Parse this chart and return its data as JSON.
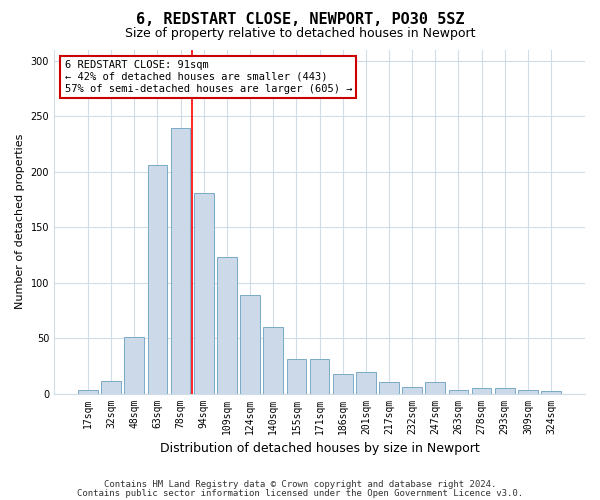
{
  "title1": "6, REDSTART CLOSE, NEWPORT, PO30 5SZ",
  "title2": "Size of property relative to detached houses in Newport",
  "xlabel": "Distribution of detached houses by size in Newport",
  "ylabel": "Number of detached properties",
  "bar_labels": [
    "17sqm",
    "32sqm",
    "48sqm",
    "63sqm",
    "78sqm",
    "94sqm",
    "109sqm",
    "124sqm",
    "140sqm",
    "155sqm",
    "171sqm",
    "186sqm",
    "201sqm",
    "217sqm",
    "232sqm",
    "247sqm",
    "263sqm",
    "278sqm",
    "293sqm",
    "309sqm",
    "324sqm"
  ],
  "bar_values": [
    3,
    11,
    51,
    206,
    240,
    181,
    123,
    89,
    60,
    31,
    31,
    18,
    19,
    10,
    6,
    10,
    3,
    5,
    5,
    3,
    2
  ],
  "bar_color": "#ccd9e8",
  "bar_edge_color": "#7aaac8",
  "red_line_index": 4.5,
  "annotation_text": "6 REDSTART CLOSE: 91sqm\n← 42% of detached houses are smaller (443)\n57% of semi-detached houses are larger (605) →",
  "annotation_box_facecolor": "#ffffff",
  "annotation_box_edgecolor": "#cc0000",
  "footnote1": "Contains HM Land Registry data © Crown copyright and database right 2024.",
  "footnote2": "Contains public sector information licensed under the Open Government Licence v3.0.",
  "ylim": [
    0,
    310
  ],
  "yticks": [
    0,
    50,
    100,
    150,
    200,
    250,
    300
  ],
  "background_color": "#ffffff",
  "grid_color": "#d0dce8",
  "title1_fontsize": 11,
  "title2_fontsize": 9,
  "xlabel_fontsize": 9,
  "ylabel_fontsize": 8,
  "tick_fontsize": 7,
  "annotation_fontsize": 7.5,
  "footnote_fontsize": 6.5
}
